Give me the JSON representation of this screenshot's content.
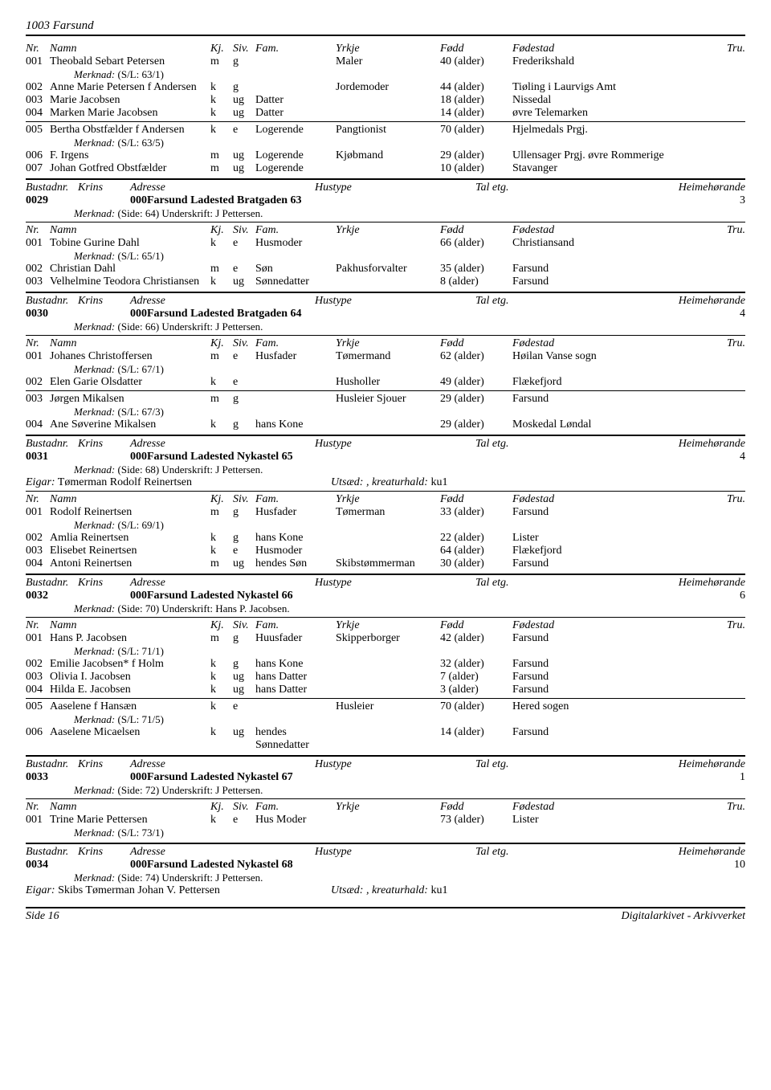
{
  "docTitle": "1003 Farsund",
  "columnHeaders": {
    "nr": "Nr.",
    "namn": "Namn",
    "kj": "Kj.",
    "siv": "Siv.",
    "fam": "Fam.",
    "yrkje": "Yrkje",
    "fodd": "Fødd",
    "fodestad": "Fødestad",
    "tru": "Tru."
  },
  "bustadHeaders": {
    "bustadnr": "Bustadnr.",
    "krins": "Krins",
    "adresse": "Adresse",
    "hustype": "Hustype",
    "taletg": "Tal etg.",
    "heime": "Heimehørande"
  },
  "merknadLabel": "Merknad:",
  "eigarLabel": "Eigar:",
  "utsaedLabel": "Utsæd:",
  "kreaturhaldLabel": ", kreaturhald:",
  "topPersons": [
    {
      "nr": "001",
      "namn": "Theobald Sebart Petersen",
      "kj": "m",
      "siv": "g",
      "fam": "",
      "yrkje": "Maler",
      "fodd": "40 (alder)",
      "fodestad": "Frederikshald",
      "merknad": "(S/L: 63/1)"
    },
    {
      "nr": "002",
      "namn": "Anne Marie Petersen f Andersen",
      "kj": "k",
      "siv": "g",
      "fam": "",
      "yrkje": "Jordemoder",
      "fodd": "44 (alder)",
      "fodestad": "Tiøling i Laurvigs Amt"
    },
    {
      "nr": "003",
      "namn": "Marie Jacobsen",
      "kj": "k",
      "siv": "ug",
      "fam": "Datter",
      "yrkje": "",
      "fodd": "18 (alder)",
      "fodestad": "Nissedal"
    },
    {
      "nr": "004",
      "namn": "Marken Marie Jacobsen",
      "kj": "k",
      "siv": "ug",
      "fam": "Datter",
      "yrkje": "",
      "fodd": "14 (alder)",
      "fodestad": "øvre Telemarken",
      "sepAfter": true
    },
    {
      "nr": "005",
      "namn": "Bertha Obstfælder f Andersen",
      "kj": "k",
      "siv": "e",
      "fam": "Logerende",
      "yrkje": "Pangtionist",
      "fodd": "70 (alder)",
      "fodestad": "Hjelmedals Prgj.",
      "merknad": "(S/L: 63/5)"
    },
    {
      "nr": "006",
      "namn": "F. Irgens",
      "kj": "m",
      "siv": "ug",
      "fam": "Logerende",
      "yrkje": "Kjøbmand",
      "fodd": "29 (alder)",
      "fodestad": "Ullensager Prgj. øvre Rommerige"
    },
    {
      "nr": "007",
      "namn": "Johan Gotfred Obstfælder",
      "kj": "m",
      "siv": "ug",
      "fam": "Logerende",
      "yrkje": "",
      "fodd": "10 (alder)",
      "fodestad": "Stavanger"
    }
  ],
  "bustads": [
    {
      "nr": "0029",
      "adresse": "000Farsund Ladested Bratgaden 63",
      "heime": "3",
      "merknad": "(Side: 64) Underskrift: J Pettersen.",
      "persons": [
        {
          "nr": "001",
          "namn": "Tobine Gurine Dahl",
          "kj": "k",
          "siv": "e",
          "fam": "Husmoder",
          "yrkje": "",
          "fodd": "66 (alder)",
          "fodestad": "Christiansand",
          "merknad": "(S/L: 65/1)"
        },
        {
          "nr": "002",
          "namn": "Christian Dahl",
          "kj": "m",
          "siv": "e",
          "fam": "Søn",
          "yrkje": "Pakhusforvalter",
          "fodd": "35 (alder)",
          "fodestad": "Farsund"
        },
        {
          "nr": "003",
          "namn": "Velhelmine Teodora Christiansen",
          "kj": "k",
          "siv": "ug",
          "fam": "Sønnedatter",
          "yrkje": "",
          "fodd": "8 (alder)",
          "fodestad": "Farsund"
        }
      ]
    },
    {
      "nr": "0030",
      "adresse": "000Farsund Ladested Bratgaden 64",
      "heime": "4",
      "merknad": "(Side: 66) Underskrift: J Pettersen.",
      "persons": [
        {
          "nr": "001",
          "namn": "Johanes Christoffersen",
          "kj": "m",
          "siv": "e",
          "fam": "Husfader",
          "yrkje": "Tømermand",
          "fodd": "62 (alder)",
          "fodestad": "Høilan Vanse sogn",
          "merknad": "(S/L: 67/1)"
        },
        {
          "nr": "002",
          "namn": "Elen Garie Olsdatter",
          "kj": "k",
          "siv": "e",
          "fam": "",
          "yrkje": "Husholler",
          "fodd": "49 (alder)",
          "fodestad": "Flækefjord",
          "sepAfter": true
        },
        {
          "nr": "003",
          "namn": "Jørgen Mikalsen",
          "kj": "m",
          "siv": "g",
          "fam": "",
          "yrkje": "Husleier Sjouer",
          "fodd": "29 (alder)",
          "fodestad": "Farsund",
          "merknad": "(S/L: 67/3)"
        },
        {
          "nr": "004",
          "namn": "Ane Søverine Mikalsen",
          "kj": "k",
          "siv": "g",
          "fam": "hans Kone",
          "yrkje": "",
          "fodd": "29 (alder)",
          "fodestad": "Moskedal Løndal"
        }
      ]
    },
    {
      "nr": "0031",
      "adresse": "000Farsund Ladested Nykastel 65",
      "heime": "4",
      "merknad": "(Side: 68) Underskrift: J Pettersen.",
      "eigar": "Tømerman Rodolf Reinertsen",
      "utsaed": "",
      "kreaturhald": "ku1",
      "persons": [
        {
          "nr": "001",
          "namn": "Rodolf Reinertsen",
          "kj": "m",
          "siv": "g",
          "fam": "Husfader",
          "yrkje": "Tømerman",
          "fodd": "33 (alder)",
          "fodestad": "Farsund",
          "merknad": "(S/L: 69/1)"
        },
        {
          "nr": "002",
          "namn": "Amlia Reinertsen",
          "kj": "k",
          "siv": "g",
          "fam": "hans Kone",
          "yrkje": "",
          "fodd": "22 (alder)",
          "fodestad": "Lister"
        },
        {
          "nr": "003",
          "namn": "Elisebet Reinertsen",
          "kj": "k",
          "siv": "e",
          "fam": "Husmoder",
          "yrkje": "",
          "fodd": "64 (alder)",
          "fodestad": "Flækefjord"
        },
        {
          "nr": "004",
          "namn": "Antoni Reinertsen",
          "kj": "m",
          "siv": "ug",
          "fam": "hendes Søn",
          "yrkje": "Skibstømmerman",
          "fodd": "30 (alder)",
          "fodestad": "Farsund"
        }
      ]
    },
    {
      "nr": "0032",
      "adresse": "000Farsund Ladested Nykastel 66",
      "heime": "6",
      "merknad": "(Side: 70) Underskrift: Hans P. Jacobsen.",
      "persons": [
        {
          "nr": "001",
          "namn": "Hans P. Jacobsen",
          "kj": "m",
          "siv": "g",
          "fam": "Huusfader",
          "yrkje": "Skipperborger",
          "fodd": "42 (alder)",
          "fodestad": "Farsund",
          "merknad": "(S/L: 71/1)"
        },
        {
          "nr": "002",
          "namn": "Emilie Jacobsen* f Holm",
          "kj": "k",
          "siv": "g",
          "fam": "hans Kone",
          "yrkje": "",
          "fodd": "32 (alder)",
          "fodestad": "Farsund"
        },
        {
          "nr": "003",
          "namn": "Olivia I. Jacobsen",
          "kj": "k",
          "siv": "ug",
          "fam": "hans Datter",
          "yrkje": "",
          "fodd": "7 (alder)",
          "fodestad": "Farsund"
        },
        {
          "nr": "004",
          "namn": "Hilda E. Jacobsen",
          "kj": "k",
          "siv": "ug",
          "fam": "hans Datter",
          "yrkje": "",
          "fodd": "3 (alder)",
          "fodestad": "Farsund",
          "sepAfter": true
        },
        {
          "nr": "005",
          "namn": "Aaselene f Hansæn",
          "kj": "k",
          "siv": "e",
          "fam": "",
          "yrkje": "Husleier",
          "fodd": "70 (alder)",
          "fodestad": "Hered sogen",
          "merknad": "(S/L: 71/5)"
        },
        {
          "nr": "006",
          "namn": "Aaselene Micaelsen",
          "kj": "k",
          "siv": "ug",
          "fam": "hendes Sønnedatter",
          "yrkje": "",
          "fodd": "14 (alder)",
          "fodestad": "Farsund"
        }
      ]
    },
    {
      "nr": "0033",
      "adresse": "000Farsund Ladested Nykastel 67",
      "heime": "1",
      "merknad": "(Side: 72) Underskrift: J Pettersen.",
      "persons": [
        {
          "nr": "001",
          "namn": "Trine Marie Pettersen",
          "kj": "k",
          "siv": "e",
          "fam": "Hus Moder",
          "yrkje": "",
          "fodd": "73 (alder)",
          "fodestad": "Lister",
          "merknad": "(S/L: 73/1)"
        }
      ]
    },
    {
      "nr": "0034",
      "adresse": "000Farsund Ladested Nykastel 68",
      "heime": "10",
      "merknad": "(Side: 74) Underskrift: J Pettersen.",
      "eigar": "Skibs Tømerman Johan V. Pettersen",
      "utsaed": "",
      "kreaturhald": "ku1",
      "persons": []
    }
  ],
  "footer": {
    "left": "Side 16",
    "right": "Digitalarkivet - Arkivverket"
  }
}
